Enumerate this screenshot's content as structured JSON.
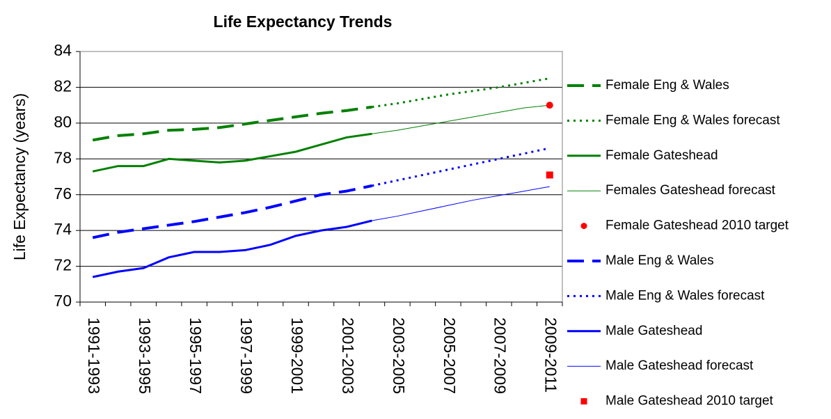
{
  "chart_data": {
    "type": "line",
    "title": "Life Expectancy Trends",
    "y_label": "Life Expectancy (years)",
    "categories": [
      "1991-1993",
      null,
      "1993-1995",
      null,
      "1995-1997",
      null,
      "1997-1999",
      null,
      "1999-2001",
      null,
      "2001-2003",
      null,
      "2003-2005",
      null,
      "2005-2007",
      null,
      "2007-2009",
      null,
      "2009-2011"
    ],
    "ylim": [
      70,
      84
    ],
    "yticks": [
      70,
      72,
      74,
      76,
      78,
      80,
      82,
      84
    ],
    "grid": true,
    "legend": "right",
    "series": [
      {
        "name": "Female Eng & Wales",
        "color": "#008000",
        "dash": "dashed",
        "width": 4,
        "marker": "none",
        "values": [
          79.05,
          79.3,
          79.4,
          79.6,
          79.65,
          79.75,
          79.95,
          80.15,
          80.35,
          80.55,
          80.7,
          80.9,
          null,
          null,
          null,
          null,
          null,
          null,
          null
        ]
      },
      {
        "name": "Female Eng & Wales forecast",
        "color": "#008000",
        "dash": "dotted",
        "width": 3,
        "marker": "none",
        "values": [
          null,
          null,
          null,
          null,
          null,
          null,
          null,
          null,
          null,
          null,
          null,
          80.9,
          81.1,
          81.35,
          81.6,
          81.8,
          82.0,
          82.25,
          82.5
        ]
      },
      {
        "name": "Female Gateshead",
        "color": "#008000",
        "dash": "solid",
        "width": 3,
        "marker": "none",
        "values": [
          77.3,
          77.6,
          77.6,
          78.0,
          77.9,
          77.8,
          77.9,
          78.15,
          78.4,
          78.8,
          79.2,
          79.4,
          null,
          null,
          null,
          null,
          null,
          null,
          null
        ]
      },
      {
        "name": "Females Gateshead forecast",
        "color": "#008000",
        "dash": "solid",
        "width": 1,
        "marker": "none",
        "values": [
          null,
          null,
          null,
          null,
          null,
          null,
          null,
          null,
          null,
          null,
          null,
          79.4,
          79.6,
          79.85,
          80.1,
          80.35,
          80.6,
          80.85,
          81.0
        ]
      },
      {
        "name": "Female Gateshead 2010 target",
        "color": "#ff0000",
        "dash": "none",
        "width": 0,
        "marker": "circle",
        "values": [
          null,
          null,
          null,
          null,
          null,
          null,
          null,
          null,
          null,
          null,
          null,
          null,
          null,
          null,
          null,
          null,
          null,
          null,
          81.0
        ]
      },
      {
        "name": "Male Eng & Wales",
        "color": "#0000ff",
        "dash": "dashed",
        "width": 4,
        "marker": "none",
        "values": [
          73.6,
          73.9,
          74.1,
          74.3,
          74.5,
          74.75,
          75.0,
          75.3,
          75.65,
          76.0,
          76.2,
          76.5,
          null,
          null,
          null,
          null,
          null,
          null,
          null
        ]
      },
      {
        "name": "Male Eng & Wales forecast",
        "color": "#0000ff",
        "dash": "dotted",
        "width": 3,
        "marker": "none",
        "values": [
          null,
          null,
          null,
          null,
          null,
          null,
          null,
          null,
          null,
          null,
          null,
          76.5,
          76.8,
          77.1,
          77.4,
          77.7,
          78.0,
          78.3,
          78.6
        ]
      },
      {
        "name": "Male Gateshead",
        "color": "#0000ff",
        "dash": "solid",
        "width": 3,
        "marker": "none",
        "values": [
          71.4,
          71.7,
          71.9,
          72.5,
          72.8,
          72.8,
          72.9,
          73.2,
          73.7,
          74.0,
          74.2,
          74.55,
          null,
          null,
          null,
          null,
          null,
          null,
          null
        ]
      },
      {
        "name": "Male Gateshead forecast",
        "color": "#0000ff",
        "dash": "solid",
        "width": 1,
        "marker": "none",
        "values": [
          null,
          null,
          null,
          null,
          null,
          null,
          null,
          null,
          null,
          null,
          null,
          74.55,
          74.8,
          75.1,
          75.4,
          75.7,
          75.95,
          76.2,
          76.45
        ]
      },
      {
        "name": "Male Gateshead 2010 target",
        "color": "#ff0000",
        "dash": "none",
        "width": 0,
        "marker": "square",
        "values": [
          null,
          null,
          null,
          null,
          null,
          null,
          null,
          null,
          null,
          null,
          null,
          null,
          null,
          null,
          null,
          null,
          null,
          null,
          77.1
        ]
      }
    ]
  }
}
